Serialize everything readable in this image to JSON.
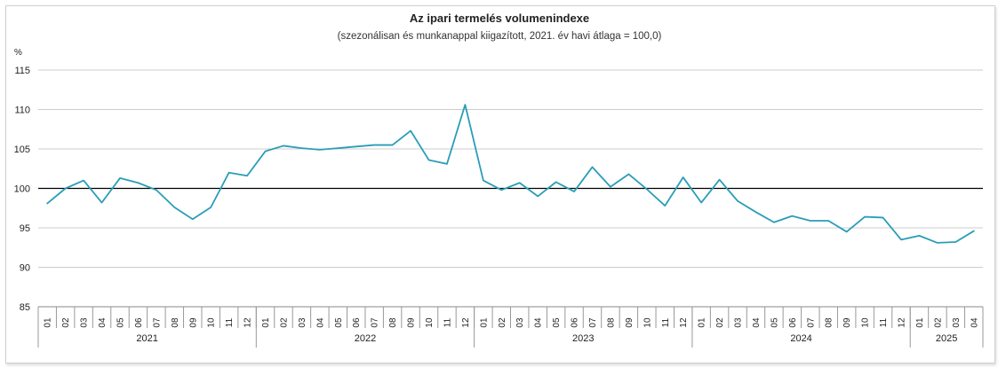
{
  "chart_data": {
    "type": "line",
    "title": "Az ipari termelés volumenindexe",
    "subtitle": "(szezonálisan és munkanappal kiigazított, 2021. év havi átlaga = 100,0)",
    "ylabel": "%",
    "ylim": [
      85,
      115
    ],
    "yticks": [
      85,
      90,
      95,
      100,
      105,
      110,
      115
    ],
    "reference_line": 100,
    "grid": true,
    "colors": {
      "line": "#2a9db8",
      "reference": "#000000",
      "grid": "#cccccc"
    },
    "years": [
      {
        "label": "2021",
        "months": 12
      },
      {
        "label": "2022",
        "months": 12
      },
      {
        "label": "2023",
        "months": 12
      },
      {
        "label": "2024",
        "months": 12
      },
      {
        "label": "2025",
        "months": 4
      }
    ],
    "month_labels": [
      "01",
      "02",
      "03",
      "04",
      "05",
      "06",
      "07",
      "08",
      "09",
      "10",
      "11",
      "12"
    ],
    "values": [
      98.1,
      100.0,
      101.0,
      98.2,
      101.3,
      100.7,
      99.8,
      97.6,
      96.1,
      97.6,
      102.0,
      101.6,
      104.7,
      105.4,
      105.1,
      104.9,
      105.1,
      105.3,
      105.5,
      105.5,
      107.3,
      103.6,
      103.1,
      110.6,
      101.0,
      99.8,
      100.7,
      99.0,
      100.8,
      99.6,
      102.7,
      100.2,
      101.8,
      99.9,
      97.8,
      101.4,
      98.2,
      101.1,
      98.4,
      97.0,
      95.7,
      96.5,
      95.9,
      95.9,
      94.5,
      96.4,
      96.3,
      93.5,
      94.0,
      93.1,
      93.2,
      94.6
    ]
  }
}
